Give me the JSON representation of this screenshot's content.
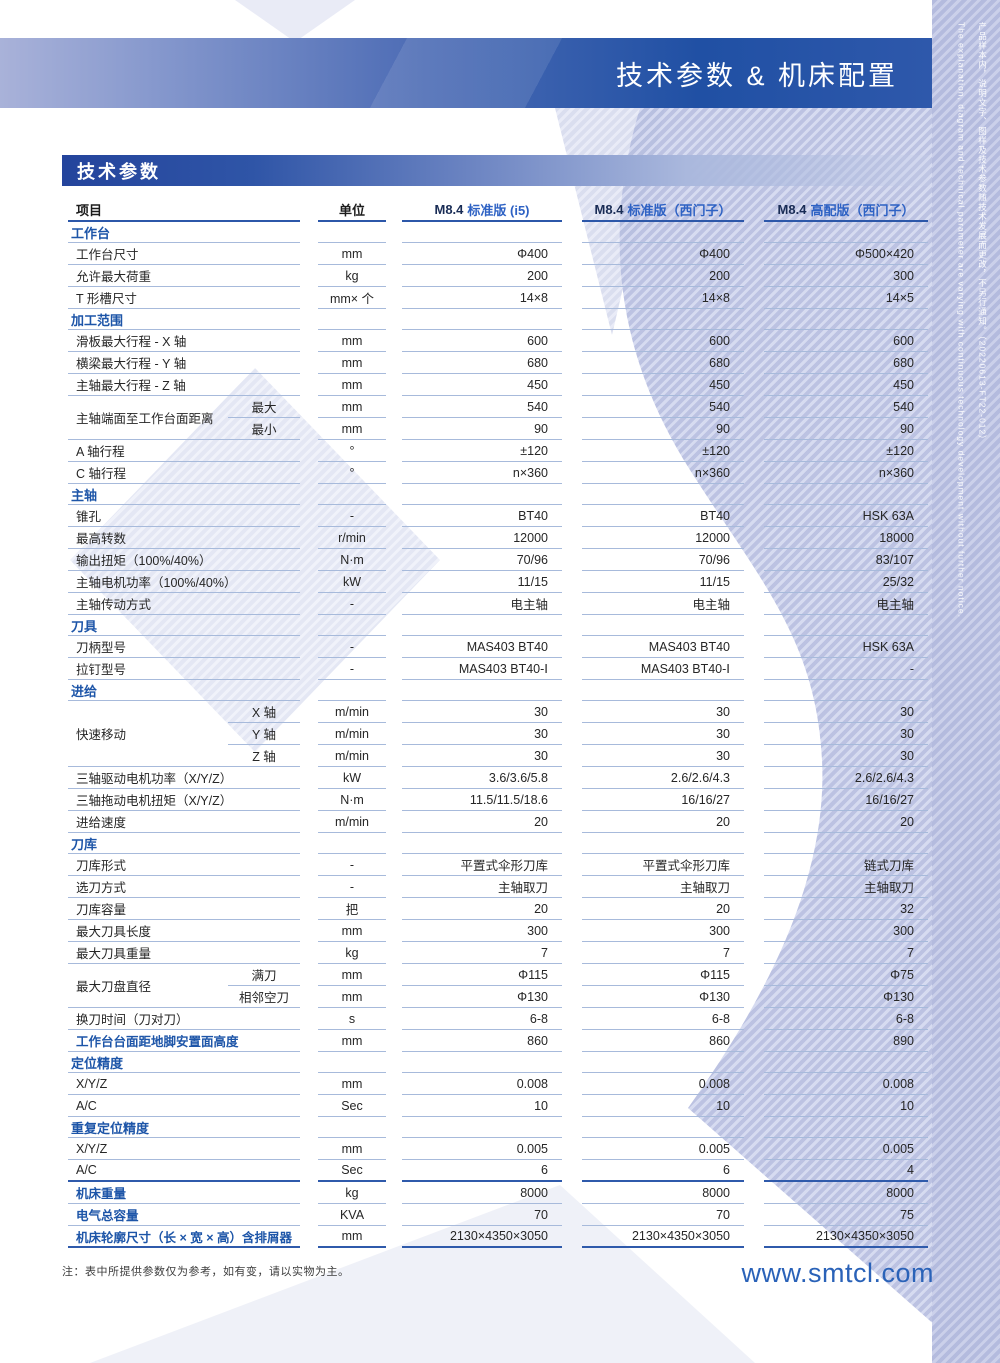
{
  "page": {
    "banner_title": "技术参数 & 机床配置",
    "section_bar": "技术参数",
    "note": "注：表中所提供参数仅为参考，如有变，请以实物为主。",
    "website": "www.smtcl.com",
    "side_note_en": "The explanation, diagram and technical parameter are varying with continuous technology development without further notice.",
    "side_note_cn": "产品样本内，说明文字、图样及技术参数随技术发展而更改，不另行通知。（20220613-FT22-012）",
    "colors": {
      "banner_blue": "#2050a4",
      "accent_blue": "#1d55a8",
      "variant_blue": "#2e62c4",
      "line_blue": "#a7badb",
      "watermark_lavender": "#b5bcdf"
    }
  },
  "table": {
    "headers": {
      "item": "项目",
      "unit": "单位",
      "cols": [
        {
          "model": "M8.4",
          "variant": "标准版 (i5)"
        },
        {
          "model": "M8.4",
          "variant": "标准版（西门子）"
        },
        {
          "model": "M8.4",
          "variant": "高配版（西门子）"
        }
      ]
    },
    "sections": [
      {
        "title": "工作台",
        "rows": [
          {
            "label": "工作台尺寸",
            "unit": "mm",
            "values": [
              "Φ400",
              "Φ400",
              "Φ500×420"
            ]
          },
          {
            "label": "允许最大荷重",
            "unit": "kg",
            "values": [
              "200",
              "200",
              "300"
            ]
          },
          {
            "label": "T 形槽尺寸",
            "unit": "mm× 个",
            "values": [
              "14×8",
              "14×8",
              "14×5"
            ]
          }
        ]
      },
      {
        "title": "加工范围",
        "rows": [
          {
            "label": "滑板最大行程 - X 轴",
            "unit": "mm",
            "values": [
              "600",
              "600",
              "600"
            ]
          },
          {
            "label": "横梁最大行程 - Y 轴",
            "unit": "mm",
            "values": [
              "680",
              "680",
              "680"
            ]
          },
          {
            "label": "主轴最大行程 - Z 轴",
            "unit": "mm",
            "values": [
              "450",
              "450",
              "450"
            ]
          },
          {
            "label": "主轴端面至工作台面距离",
            "subrows": [
              {
                "sub": "最大",
                "unit": "mm",
                "values": [
                  "540",
                  "540",
                  "540"
                ]
              },
              {
                "sub": "最小",
                "unit": "mm",
                "values": [
                  "90",
                  "90",
                  "90"
                ]
              }
            ]
          },
          {
            "label": "A 轴行程",
            "unit": "°",
            "values": [
              "±120",
              "±120",
              "±120"
            ]
          },
          {
            "label": "C 轴行程",
            "unit": "°",
            "values": [
              "n×360",
              "n×360",
              "n×360"
            ]
          }
        ]
      },
      {
        "title": "主轴",
        "rows": [
          {
            "label": "锥孔",
            "unit": "-",
            "values": [
              "BT40",
              "BT40",
              "HSK 63A"
            ]
          },
          {
            "label": "最高转数",
            "unit": "r/min",
            "values": [
              "12000",
              "12000",
              "18000"
            ]
          },
          {
            "label": "输出扭矩（100%/40%）",
            "unit": "N·m",
            "values": [
              "70/96",
              "70/96",
              "83/107"
            ]
          },
          {
            "label": "主轴电机功率（100%/40%）",
            "unit": "kW",
            "values": [
              "11/15",
              "11/15",
              "25/32"
            ]
          },
          {
            "label": "主轴传动方式",
            "unit": "-",
            "values": [
              "电主轴",
              "电主轴",
              "电主轴"
            ]
          }
        ]
      },
      {
        "title": "刀具",
        "rows": [
          {
            "label": "刀柄型号",
            "unit": "-",
            "values": [
              "MAS403 BT40",
              "MAS403 BT40",
              "HSK 63A"
            ]
          },
          {
            "label": "拉钉型号",
            "unit": "-",
            "values": [
              "MAS403 BT40-Ⅰ",
              "MAS403 BT40-Ⅰ",
              "-"
            ]
          }
        ]
      },
      {
        "title": "进给",
        "rows": [
          {
            "label": "快速移动",
            "subrows": [
              {
                "sub": "X 轴",
                "unit": "m/min",
                "values": [
                  "30",
                  "30",
                  "30"
                ]
              },
              {
                "sub": "Y 轴",
                "unit": "m/min",
                "values": [
                  "30",
                  "30",
                  "30"
                ]
              },
              {
                "sub": "Z 轴",
                "unit": "m/min",
                "values": [
                  "30",
                  "30",
                  "30"
                ]
              }
            ]
          },
          {
            "label": "三轴驱动电机功率（X/Y/Z）",
            "unit": "kW",
            "values": [
              "3.6/3.6/5.8",
              "2.6/2.6/4.3",
              "2.6/2.6/4.3"
            ]
          },
          {
            "label": "三轴拖动电机扭矩（X/Y/Z）",
            "unit": "N·m",
            "values": [
              "11.5/11.5/18.6",
              "16/16/27",
              "16/16/27"
            ]
          },
          {
            "label": "进给速度",
            "unit": "m/min",
            "values": [
              "20",
              "20",
              "20"
            ]
          }
        ]
      },
      {
        "title": "刀库",
        "rows": [
          {
            "label": "刀库形式",
            "unit": "-",
            "values": [
              "平置式伞形刀库",
              "平置式伞形刀库",
              "链式刀库"
            ]
          },
          {
            "label": "选刀方式",
            "unit": "-",
            "values": [
              "主轴取刀",
              "主轴取刀",
              "主轴取刀"
            ]
          },
          {
            "label": "刀库容量",
            "unit": "把",
            "values": [
              "20",
              "20",
              "32"
            ]
          },
          {
            "label": "最大刀具长度",
            "unit": "mm",
            "values": [
              "300",
              "300",
              "300"
            ]
          },
          {
            "label": "最大刀具重量",
            "unit": "kg",
            "values": [
              "7",
              "7",
              "7"
            ]
          },
          {
            "label": "最大刀盘直径",
            "subrows": [
              {
                "sub": "满刀",
                "unit": "mm",
                "values": [
                  "Φ115",
                  "Φ115",
                  "Φ75"
                ]
              },
              {
                "sub": "相邻空刀",
                "unit": "mm",
                "values": [
                  "Φ130",
                  "Φ130",
                  "Φ130"
                ]
              }
            ]
          },
          {
            "label": "换刀时间（刀对刀）",
            "unit": "s",
            "values": [
              "6-8",
              "6-8",
              "6-8"
            ]
          }
        ]
      },
      {
        "title": null,
        "rows": [
          {
            "label": "工作台台面距地脚安置面高度",
            "strong": true,
            "unit": "mm",
            "values": [
              "860",
              "860",
              "890"
            ]
          }
        ]
      },
      {
        "title": "定位精度",
        "rows": [
          {
            "label": "X/Y/Z",
            "unit": "mm",
            "values": [
              "0.008",
              "0.008",
              "0.008"
            ]
          },
          {
            "label": "A/C",
            "unit": "Sec",
            "values": [
              "10",
              "10",
              "10"
            ]
          }
        ]
      },
      {
        "title": "重复定位精度",
        "rows": [
          {
            "label": "X/Y/Z",
            "unit": "mm",
            "values": [
              "0.005",
              "0.005",
              "0.005"
            ]
          },
          {
            "label": "A/C",
            "unit": "Sec",
            "values": [
              "6",
              "6",
              "4"
            ],
            "dark": true
          }
        ]
      },
      {
        "title": null,
        "rows": [
          {
            "label": "机床重量",
            "strong": true,
            "unit": "kg",
            "values": [
              "8000",
              "8000",
              "8000"
            ]
          },
          {
            "label": "电气总容量",
            "strong": true,
            "unit": "KVA",
            "values": [
              "70",
              "70",
              "75"
            ]
          },
          {
            "label": "机床轮廓尺寸（长 × 宽 × 高）含排屑器",
            "strong": true,
            "dark": true,
            "unit": "mm",
            "values": [
              "2130×4350×3050",
              "2130×4350×3050",
              "2130×4350×3050"
            ]
          }
        ]
      }
    ]
  }
}
